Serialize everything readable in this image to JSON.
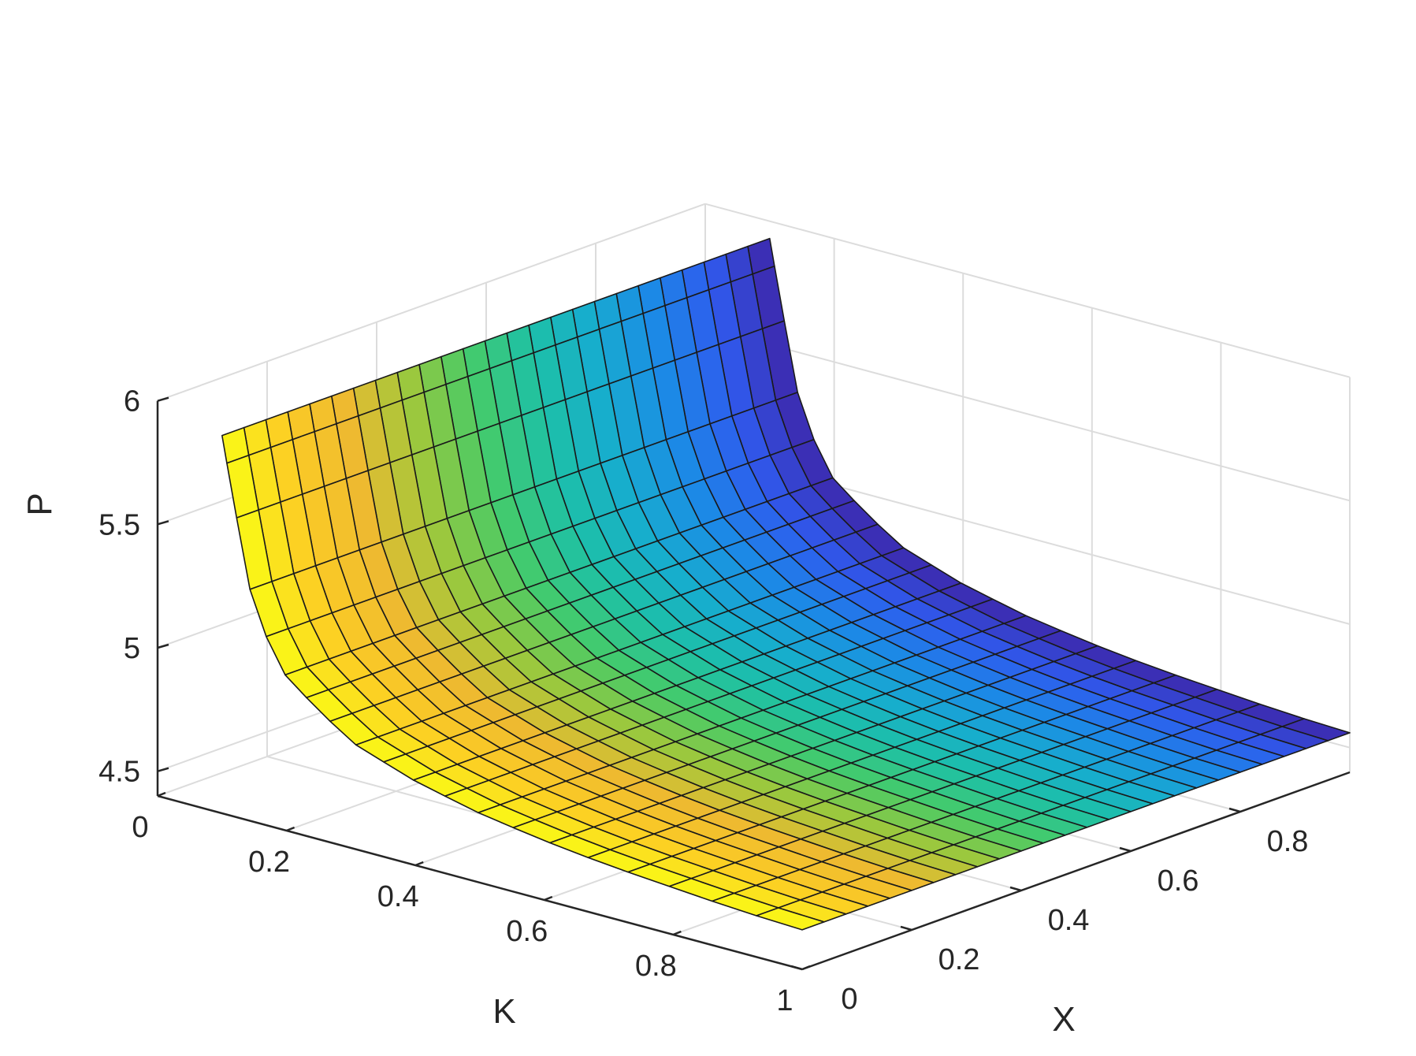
{
  "chart_data": {
    "type": "surface",
    "title": "",
    "xlabel": "K",
    "ylabel": "X",
    "zlabel": "P",
    "xlim": [
      0,
      1
    ],
    "ylim": [
      0,
      1
    ],
    "zlim": [
      4.4,
      6
    ],
    "x_ticks": [
      "0",
      "0.2",
      "0.4",
      "0.6",
      "0.8",
      "1"
    ],
    "y_ticks": [
      "0",
      "0.2",
      "0.4",
      "0.6",
      "0.8"
    ],
    "z_ticks": [
      "4.5",
      "5",
      "5.5",
      "6"
    ],
    "grid": true,
    "colormap": "parula",
    "colormap_stops": [
      "#3e26a8",
      "#2f5aee",
      "#1c8ae6",
      "#17adce",
      "#1ec1a5",
      "#47cb67",
      "#a0c83b",
      "#eeba30",
      "#fccc25",
      "#f9fb15"
    ],
    "surface": {
      "k_range": [
        0.1,
        1.0
      ],
      "k_steps": 20,
      "x_range": [
        0.0,
        1.0
      ],
      "x_steps": 25,
      "z_at_k": [
        [
          0.1,
          5.93
        ],
        [
          0.15,
          5.25
        ],
        [
          0.2,
          5.02
        ],
        [
          0.3,
          4.83
        ],
        [
          0.4,
          4.74
        ],
        [
          0.5,
          4.68
        ],
        [
          0.6,
          4.64
        ],
        [
          0.7,
          4.61
        ],
        [
          0.8,
          4.59
        ],
        [
          0.9,
          4.57
        ],
        [
          1.0,
          4.56
        ]
      ]
    }
  }
}
